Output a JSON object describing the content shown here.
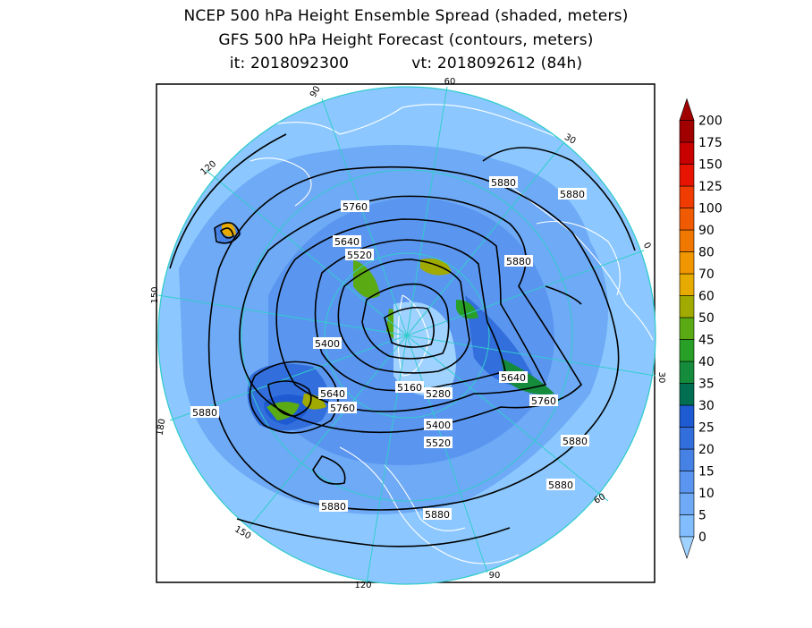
{
  "header": {
    "title1": "NCEP 500 hPa Height Ensemble Spread (shaded, meters)",
    "title2": "GFS 500 hPa Height Forecast (contours, meters)",
    "init_label": "it: 2018092300",
    "valid_label": "vt: 2018092612 (84h)"
  },
  "map": {
    "projection": "north-polar-stereographic",
    "land_outline_color": "#ffffff",
    "grid_color": "#33cccc",
    "longitude_labels": [
      "60",
      "30",
      "0",
      "30",
      "60",
      "90",
      "120",
      "150",
      "180",
      "150",
      "120",
      "90"
    ],
    "contour_labels": [
      "5760",
      "5640",
      "5520",
      "5880",
      "5880",
      "5880",
      "5400",
      "5640",
      "5760",
      "5160",
      "5280",
      "5640",
      "5760",
      "5880",
      "5400",
      "5520",
      "5880",
      "5880",
      "5880",
      "5880"
    ]
  },
  "colorbar": {
    "levels": [
      "0",
      "5",
      "10",
      "15",
      "20",
      "25",
      "30",
      "35",
      "40",
      "45",
      "50",
      "60",
      "70",
      "80",
      "90",
      "100",
      "125",
      "150",
      "175",
      "200"
    ],
    "colors": [
      "#a0d2ff",
      "#82beff",
      "#6eaaf5",
      "#5a96f0",
      "#4682e6",
      "#326edc",
      "#1e5ad2",
      "#006e50",
      "#148c3c",
      "#28a028",
      "#5aaa14",
      "#a0aa00",
      "#e6aa00",
      "#f09600",
      "#f07800",
      "#f05a00",
      "#f03c00",
      "#e61400",
      "#c80000",
      "#a00000"
    ]
  }
}
